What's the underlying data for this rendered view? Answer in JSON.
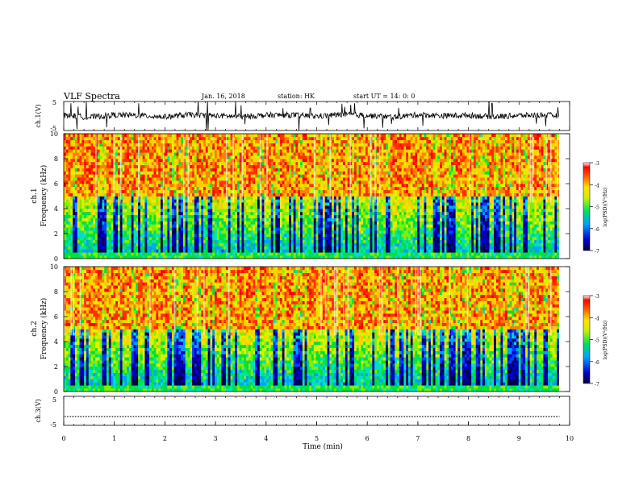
{
  "header": {
    "title": "VLF Spectra",
    "date": "Jan. 16, 2018",
    "station": "station: HK",
    "start_time": "start  UT =  14: 0: 0"
  },
  "chart_data": [
    {
      "type": "line",
      "panel": "ch1-waveform",
      "ylabel": "ch.1(V)",
      "ylim": [
        -5,
        5
      ],
      "yticks": [
        "5",
        "-5"
      ],
      "xlim": [
        0,
        10
      ],
      "baseline": 0,
      "x": [
        0,
        0.5,
        1,
        1.5,
        2,
        2.5,
        3,
        3.5,
        4,
        4.5,
        5,
        5.5,
        6,
        6.5,
        7,
        7.5,
        8,
        8.5,
        9,
        9.5,
        9.8
      ],
      "values": [
        0.3,
        -0.5,
        0.4,
        0.2,
        -0.3,
        0.5,
        0.1,
        -0.2,
        0.3,
        0.4,
        -0.1,
        0.6,
        0.2,
        -0.4,
        0.5,
        0.1,
        0.3,
        -0.3,
        0.2,
        0.4,
        0.1
      ],
      "series_color": "#000000"
    },
    {
      "type": "heatmap",
      "panel": "ch1-spectrogram",
      "ylabel": "ch.1\nFrequency (kHz)",
      "ylabel_line1": "ch.1",
      "ylabel_line2": "Frequency (kHz)",
      "ylim": [
        0,
        10
      ],
      "yticks": [
        "0",
        "2",
        "4",
        "6",
        "8",
        "10"
      ],
      "xlim": [
        0,
        9.8
      ],
      "zlim": [
        -7,
        -3
      ],
      "colorbar_label": "log(PSD)(V²/Hz)",
      "colorbar_ticks": [
        "-3",
        "-4",
        "-5",
        "-6",
        "-7"
      ]
    },
    {
      "type": "heatmap",
      "panel": "ch2-spectrogram",
      "ylabel": "ch.2\nFrequency (kHz)",
      "ylabel_line1": "ch.2",
      "ylabel_line2": "Frequency (kHz)",
      "ylim": [
        0,
        10
      ],
      "yticks": [
        "0",
        "2",
        "4",
        "6",
        "8",
        "10"
      ],
      "xlim": [
        0,
        9.8
      ],
      "zlim": [
        -7,
        -3
      ],
      "colorbar_label": "log(PSD)(V²/Hz)",
      "colorbar_ticks": [
        "-3",
        "-4",
        "-5",
        "-6",
        "-7"
      ]
    },
    {
      "type": "line",
      "panel": "ch3-waveform",
      "ylabel": "ch.3(V)",
      "ylim": [
        -5,
        5
      ],
      "yticks": [
        "5",
        "0",
        "-5"
      ],
      "xlim": [
        0,
        10
      ],
      "x": [
        0,
        9.8
      ],
      "values": [
        -2,
        -2
      ],
      "xlabel": "Time  (min)",
      "xticks": [
        "0",
        "1",
        "2",
        "3",
        "4",
        "5",
        "6",
        "7",
        "8",
        "9",
        "10"
      ],
      "series_color": "#000000"
    }
  ]
}
